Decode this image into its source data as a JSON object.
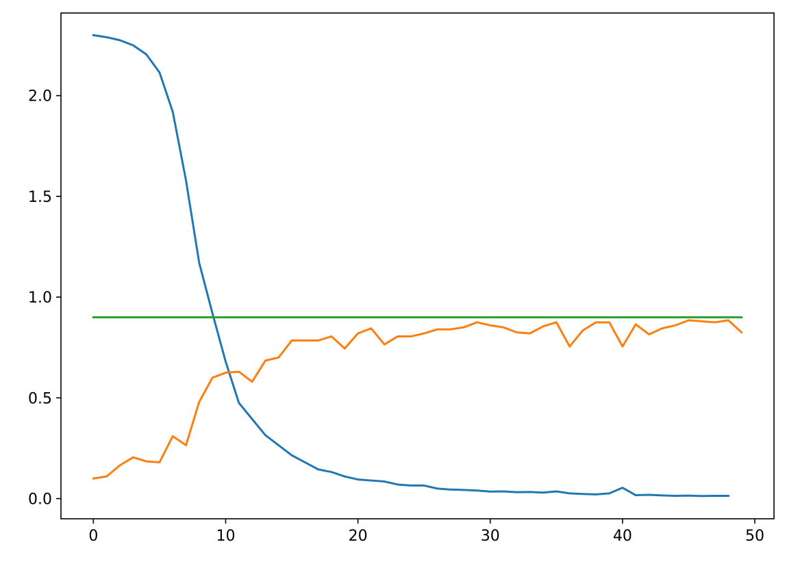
{
  "chart_data": {
    "type": "line",
    "title": "",
    "xlabel": "",
    "ylabel": "",
    "xlim": [
      -2.45,
      51.45
    ],
    "ylim": [
      -0.1,
      2.41
    ],
    "grid": false,
    "x_ticks": [
      0,
      10,
      20,
      30,
      40,
      50
    ],
    "x_tick_labels": [
      "0",
      "10",
      "20",
      "30",
      "40",
      "50"
    ],
    "y_ticks": [
      0.0,
      0.5,
      1.0,
      1.5,
      2.0
    ],
    "y_tick_labels": [
      "0.0",
      "0.5",
      "1.0",
      "1.5",
      "2.0"
    ],
    "series": [
      {
        "color": "#1f77b4",
        "x": [
          0,
          1,
          2,
          3,
          4,
          5,
          6,
          7,
          8,
          9,
          10,
          11,
          12,
          13,
          14,
          15,
          16,
          17,
          18,
          19,
          20,
          21,
          22,
          23,
          24,
          25,
          26,
          27,
          28,
          29,
          30,
          31,
          32,
          33,
          34,
          35,
          36,
          37,
          38,
          39,
          40,
          41,
          42,
          43,
          44,
          45,
          46,
          47,
          48
        ],
        "values": [
          2.3,
          2.29,
          2.275,
          2.25,
          2.205,
          2.115,
          1.92,
          1.58,
          1.17,
          0.92,
          0.68,
          0.475,
          0.395,
          0.315,
          0.265,
          0.215,
          0.18,
          0.145,
          0.132,
          0.11,
          0.095,
          0.09,
          0.085,
          0.07,
          0.065,
          0.065,
          0.05,
          0.045,
          0.043,
          0.04,
          0.035,
          0.036,
          0.032,
          0.033,
          0.03,
          0.036,
          0.026,
          0.023,
          0.021,
          0.026,
          0.054,
          0.017,
          0.019,
          0.016,
          0.014,
          0.015,
          0.013,
          0.014,
          0.014
        ]
      },
      {
        "color": "#ff7f0e",
        "x": [
          0,
          1,
          2,
          3,
          4,
          5,
          6,
          7,
          8,
          9,
          10,
          11,
          12,
          13,
          14,
          15,
          16,
          17,
          18,
          19,
          20,
          21,
          22,
          23,
          24,
          25,
          26,
          27,
          28,
          29,
          30,
          31,
          32,
          33,
          34,
          35,
          36,
          37,
          38,
          39,
          40,
          41,
          42,
          43,
          44,
          45,
          46,
          47,
          48,
          49
        ],
        "values": [
          0.1,
          0.11,
          0.165,
          0.205,
          0.185,
          0.18,
          0.31,
          0.265,
          0.48,
          0.6,
          0.625,
          0.63,
          0.58,
          0.685,
          0.7,
          0.785,
          0.785,
          0.785,
          0.805,
          0.745,
          0.82,
          0.845,
          0.765,
          0.805,
          0.805,
          0.82,
          0.84,
          0.84,
          0.85,
          0.875,
          0.86,
          0.85,
          0.825,
          0.82,
          0.855,
          0.875,
          0.755,
          0.835,
          0.875,
          0.875,
          0.755,
          0.865,
          0.815,
          0.845,
          0.86,
          0.885,
          0.88,
          0.875,
          0.885,
          0.825
        ]
      },
      {
        "color": "#2ca02c",
        "x": [
          0,
          49
        ],
        "values": [
          0.9,
          0.9
        ]
      }
    ]
  }
}
